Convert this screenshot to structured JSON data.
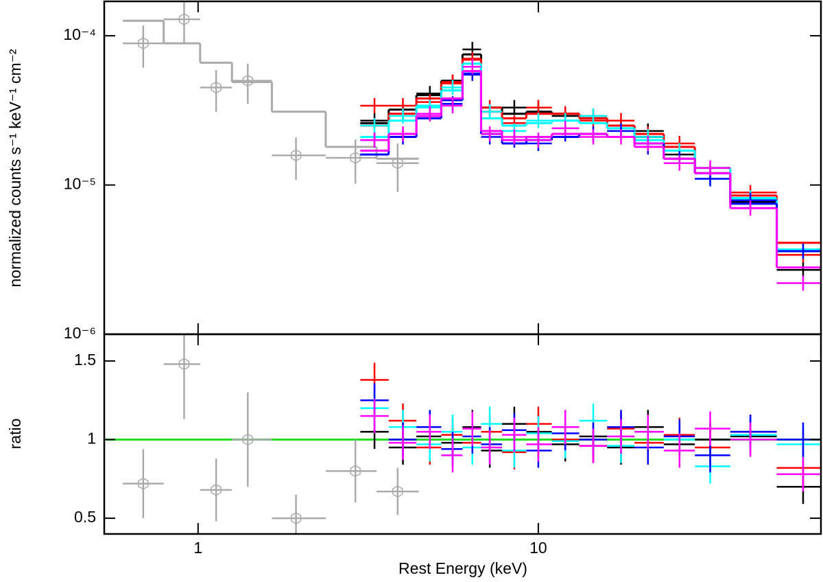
{
  "chart_data": [
    {
      "type": "spectrum",
      "y_label": "normalized counts s⁻¹ keV⁻¹ cm⁻²",
      "log_x": true,
      "log_y": true,
      "xlim": [
        0.53,
        67.7
      ],
      "ylim": [
        1e-06,
        0.00017
      ],
      "yticks": [
        {
          "value": 0.0001,
          "label": "10⁻⁴"
        },
        {
          "value": 1e-05,
          "label": "10⁻⁵"
        },
        {
          "value": 1e-06,
          "label": "10⁻⁶"
        }
      ],
      "series": [
        {
          "color": "#aaaaaa",
          "x": [
            0.69,
            0.91,
            1.13,
            1.4,
            1.94,
            2.9,
            3.86
          ],
          "values": [
            8.9e-05,
            0.000129,
            4.5e-05,
            5e-05,
            1.58e-05,
            1.52e-05,
            1.4e-05
          ],
          "errors": [
            2.8e-05,
            4e-05,
            1.4e-05,
            1.5e-05,
            5e-06,
            5e-06,
            5e-06
          ],
          "model": [
            0.000126,
            8.9e-05,
            6.6e-05,
            4.9e-05,
            3.1e-05,
            1.8e-05,
            1.5e-05
          ]
        },
        {
          "color": "#000000",
          "x": [
            3.3,
            4.0,
            4.8,
            5.6,
            6.4,
            7.2,
            8.5,
            10,
            12,
            14.5,
            17.5,
            21,
            26,
            32,
            42,
            60
          ],
          "values": [
            2.7e-05,
            3e-05,
            4.1e-05,
            4.9e-05,
            8.1e-05,
            3.1e-05,
            3.3e-05,
            3.3e-05,
            2.9e-05,
            2.9e-05,
            2.4e-05,
            2.3e-05,
            1.6e-05,
            1.2e-05,
            7.7e-06,
            2.7e-06
          ],
          "model": [
            2.6e-05,
            3.2e-05,
            4e-05,
            5e-05,
            7.5e-05,
            3.3e-05,
            3e-05,
            3.1e-05,
            3e-05,
            2.8e-05,
            2.5e-05,
            2.1e-05,
            1.7e-05,
            1.2e-05,
            7.5e-06,
            3.6e-06
          ]
        },
        {
          "color": "#ff0000",
          "x": [
            3.3,
            4.0,
            4.8,
            5.6,
            6.4,
            7.2,
            8.5,
            10,
            12,
            14.5,
            17.5,
            21,
            26,
            32,
            42,
            60
          ],
          "values": [
            3.4e-05,
            3.4e-05,
            3.6e-05,
            4.9e-05,
            6.9e-05,
            3.3e-05,
            2.6e-05,
            3.3e-05,
            3e-05,
            2.7e-05,
            2.7e-05,
            2.2e-05,
            1.9e-05,
            1.2e-05,
            8.9e-06,
            3.4e-06
          ],
          "model": [
            2.5e-05,
            3e-05,
            3.8e-05,
            4.8e-05,
            7e-05,
            3.1e-05,
            2.8e-05,
            3e-05,
            3e-05,
            2.8e-05,
            2.5e-05,
            2.2e-05,
            1.8e-05,
            1.3e-05,
            8.5e-06,
            4.1e-06
          ]
        },
        {
          "color": "#00ffff",
          "x": [
            3.3,
            4.0,
            4.8,
            5.6,
            6.4,
            7.2,
            8.5,
            10,
            12,
            14.5,
            17.5,
            21,
            26,
            32,
            42,
            60
          ],
          "values": [
            2.5e-05,
            2.9e-05,
            3.3e-05,
            4.5e-05,
            6.2e-05,
            3.1e-05,
            2.3e-05,
            2.7e-05,
            2.7e-05,
            2.9e-05,
            2.3e-05,
            2.1e-05,
            1.7e-05,
            1.1e-05,
            8.2e-06,
            3.6e-06
          ],
          "model": [
            2.1e-05,
            2.7e-05,
            3.4e-05,
            4.3e-05,
            6.5e-05,
            2.8e-05,
            2.5e-05,
            2.6e-05,
            2.7e-05,
            2.6e-05,
            2.4e-05,
            2e-05,
            1.7e-05,
            1.3e-05,
            8e-06,
            3.7e-06
          ]
        },
        {
          "color": "#0000ff",
          "x": [
            3.3,
            4.0,
            4.8,
            5.6,
            6.4,
            7.2,
            8.5,
            10,
            12,
            14.5,
            17.5,
            21,
            26,
            32,
            42,
            60
          ],
          "values": [
            2e-05,
            2.1e-05,
            3e-05,
            3.5e-05,
            5.6e-05,
            2.1e-05,
            2e-05,
            1.9e-05,
            2.2e-05,
            2.2e-05,
            2.3e-05,
            1.8e-05,
            1.5e-05,
            1.1e-05,
            7.9e-06,
            3.6e-06
          ],
          "model": [
            1.6e-05,
            2.1e-05,
            2.8e-05,
            3.7e-05,
            5.5e-05,
            2.2e-05,
            1.9e-05,
            2e-05,
            2.1e-05,
            2.2e-05,
            2.1e-05,
            1.9e-05,
            1.5e-05,
            1.2e-05,
            7.5e-06,
            3.6e-06
          ]
        },
        {
          "color": "#ff00ff",
          "x": [
            3.3,
            4.0,
            4.8,
            5.6,
            6.4,
            7.2,
            8.5,
            10,
            12,
            14.5,
            17.5,
            21,
            26,
            32,
            42,
            60
          ],
          "values": [
            2e-05,
            2.2e-05,
            3e-05,
            3.4e-05,
            6.2e-05,
            2.2e-05,
            2.1e-05,
            2e-05,
            2.4e-05,
            2.1e-05,
            2.1e-05,
            1.9e-05,
            1.4e-05,
            1.3e-05,
            7e-06,
            2.2e-06
          ],
          "model": [
            1.7e-05,
            2.2e-05,
            2.9e-05,
            3.8e-05,
            5.8e-05,
            2.3e-05,
            2e-05,
            2.1e-05,
            2.2e-05,
            2.2e-05,
            2.1e-05,
            1.8e-05,
            1.5e-05,
            1.2e-05,
            7e-06,
            2.8e-06
          ]
        }
      ]
    },
    {
      "type": "ratio",
      "x_label": "Rest Energy (keV)",
      "y_label": "ratio",
      "log_x": true,
      "xlim": [
        0.53,
        67.7
      ],
      "xticks": [
        1,
        10
      ],
      "ylim": [
        0.4,
        1.67
      ],
      "yticks": [
        0.5,
        1,
        1.5
      ],
      "reference": {
        "value": 1,
        "color": "#22dd22"
      },
      "series": [
        {
          "color": "#aaaaaa",
          "values": [
            0.72,
            1.48,
            0.68,
            1.0,
            0.5,
            0.8,
            0.67
          ],
          "errors": [
            0.22,
            0.35,
            0.2,
            0.3,
            0.15,
            0.2,
            0.15
          ]
        },
        {
          "color": "#000000",
          "values": [
            1.05,
            0.95,
            1.02,
            0.98,
            1.08,
            0.93,
            1.1,
            1.05,
            0.97,
            1.02,
            0.95,
            1.08,
            0.97,
            1.0,
            1.02,
            0.7
          ]
        },
        {
          "color": "#ff0000",
          "values": [
            1.38,
            1.12,
            0.95,
            1.03,
            0.98,
            1.05,
            0.92,
            1.1,
            1.0,
            0.96,
            1.07,
            0.98,
            1.03,
            0.95,
            1.05,
            0.82
          ]
        },
        {
          "color": "#00ffff",
          "values": [
            1.2,
            1.08,
            0.97,
            1.05,
            0.95,
            1.1,
            0.93,
            1.04,
            0.99,
            1.12,
            0.96,
            1.05,
            1.0,
            0.83,
            1.03,
            0.97
          ]
        },
        {
          "color": "#0000ff",
          "values": [
            1.25,
            1.0,
            1.08,
            0.94,
            1.02,
            0.97,
            1.06,
            0.93,
            1.04,
            1.0,
            1.08,
            0.95,
            1.02,
            0.9,
            1.05,
            1.0
          ]
        },
        {
          "color": "#ff00ff",
          "values": [
            1.15,
            0.98,
            1.05,
            0.9,
            1.07,
            0.95,
            1.03,
            0.97,
            1.08,
            0.96,
            1.02,
            1.05,
            0.93,
            1.07,
            1.0,
            0.78
          ]
        }
      ]
    }
  ]
}
